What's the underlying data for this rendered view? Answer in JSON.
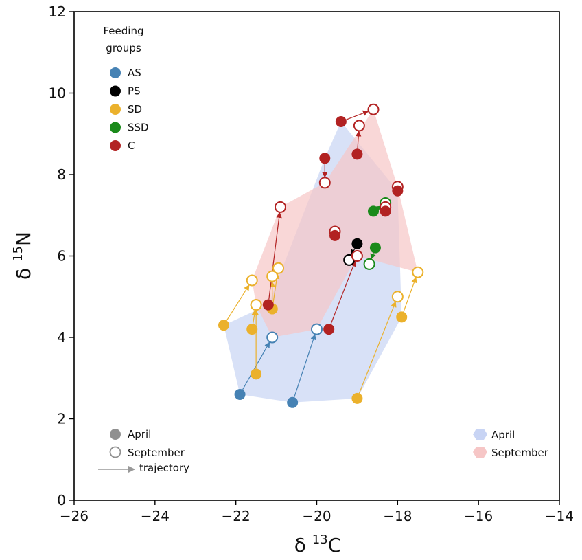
{
  "chart_data": {
    "type": "scatter",
    "xlabel": {
      "prefix": "δ ",
      "sup": "13",
      "suffix": "C"
    },
    "ylabel": {
      "prefix": "δ ",
      "sup": "15",
      "suffix": "N"
    },
    "xlim": [
      -26,
      -14
    ],
    "ylim": [
      0,
      12
    ],
    "xticks": [
      -26,
      -24,
      -22,
      -20,
      -18,
      -16,
      -14
    ],
    "yticks": [
      0,
      2,
      4,
      6,
      8,
      10,
      12
    ],
    "xtick_labels": [
      "−26",
      "−24",
      "−22",
      "−20",
      "−18",
      "−16",
      "−14"
    ],
    "ytick_labels": [
      "0",
      "2",
      "4",
      "6",
      "8",
      "10",
      "12"
    ],
    "grid": false,
    "legend_groups": {
      "title": [
        "Feeding",
        "groups"
      ],
      "placement": "top-left",
      "items": [
        {
          "label": "AS",
          "color": "#4682b4"
        },
        {
          "label": "PS",
          "color": "#000000"
        },
        {
          "label": "SD",
          "color": "#ebb12c"
        },
        {
          "label": "SSD",
          "color": "#1a8a1a"
        },
        {
          "label": "C",
          "color": "#b22222"
        }
      ]
    },
    "legend_markers": {
      "placement": "bottom-left",
      "filled_label": "April",
      "open_label": "September",
      "arrow_label": "trajectory"
    },
    "legend_hulls": {
      "placement": "bottom-right",
      "items": [
        {
          "label": "April",
          "color": "#c8d4f4"
        },
        {
          "label": "September",
          "color": "#f6c6c6"
        }
      ]
    },
    "hulls": [
      {
        "name": "April",
        "color": "#c8d4f4",
        "points": [
          [
            -21.9,
            2.6
          ],
          [
            -20.6,
            2.4
          ],
          [
            -19.0,
            2.5
          ],
          [
            -17.9,
            4.5
          ],
          [
            -18.0,
            7.6
          ],
          [
            -19.4,
            9.3
          ],
          [
            -19.8,
            8.4
          ],
          [
            -21.2,
            4.8
          ],
          [
            -22.3,
            4.3
          ]
        ]
      },
      {
        "name": "September",
        "color": "#f6c6c6",
        "points": [
          [
            -21.6,
            5.4
          ],
          [
            -21.5,
            4.8
          ],
          [
            -21.1,
            4.0
          ],
          [
            -20.0,
            4.2
          ],
          [
            -19.0,
            6.0
          ],
          [
            -17.5,
            5.6
          ],
          [
            -18.0,
            7.7
          ],
          [
            -18.6,
            9.6
          ],
          [
            -19.8,
            7.8
          ],
          [
            -20.9,
            7.2
          ]
        ]
      }
    ],
    "trajectories": [
      {
        "group": "AS",
        "april": [
          -21.9,
          2.6
        ],
        "september": [
          -21.1,
          4.0
        ]
      },
      {
        "group": "AS",
        "april": [
          -20.6,
          2.4
        ],
        "september": [
          -20.0,
          4.2
        ]
      },
      {
        "group": "PS",
        "april": [
          -19.0,
          6.3
        ],
        "september": [
          -19.2,
          5.9
        ]
      },
      {
        "group": "SD",
        "april": [
          -22.3,
          4.3
        ],
        "september": [
          -21.6,
          5.4
        ]
      },
      {
        "group": "SD",
        "april": [
          -21.6,
          4.2
        ],
        "september": [
          -21.5,
          4.8
        ]
      },
      {
        "group": "SD",
        "april": [
          -21.5,
          3.1
        ],
        "september": [
          -21.5,
          4.8
        ]
      },
      {
        "group": "SD",
        "april": [
          -21.1,
          4.7
        ],
        "september": [
          -21.1,
          5.5
        ]
      },
      {
        "group": "SD",
        "april": [
          -21.1,
          4.7
        ],
        "september": [
          -20.95,
          5.7
        ]
      },
      {
        "group": "SD",
        "april": [
          -19.0,
          2.5
        ],
        "september": [
          -18.0,
          5.0
        ]
      },
      {
        "group": "SD",
        "april": [
          -17.9,
          4.5
        ],
        "september": [
          -17.5,
          5.6
        ]
      },
      {
        "group": "SSD",
        "april": [
          -18.55,
          6.2
        ],
        "september": [
          -18.7,
          5.8
        ]
      },
      {
        "group": "SSD",
        "april": [
          -18.6,
          7.1
        ],
        "september": [
          -18.3,
          7.3
        ]
      },
      {
        "group": "C",
        "april": [
          -21.2,
          4.8
        ],
        "september": [
          -20.9,
          7.2
        ]
      },
      {
        "group": "C",
        "april": [
          -19.7,
          4.2
        ],
        "september": [
          -19.0,
          6.0
        ]
      },
      {
        "group": "C",
        "april": [
          -19.55,
          6.5
        ],
        "september": [
          -19.55,
          6.6
        ]
      },
      {
        "group": "C",
        "april": [
          -19.8,
          8.4
        ],
        "september": [
          -19.8,
          7.8
        ]
      },
      {
        "group": "C",
        "april": [
          -19.4,
          9.3
        ],
        "september": [
          -18.6,
          9.6
        ]
      },
      {
        "group": "C",
        "april": [
          -19.0,
          8.5
        ],
        "september": [
          -18.95,
          9.2
        ]
      },
      {
        "group": "C",
        "april": [
          -18.3,
          7.1
        ],
        "september": [
          -18.3,
          7.2
        ]
      },
      {
        "group": "C",
        "april": [
          -18.0,
          7.6
        ],
        "september": [
          -18.0,
          7.7
        ]
      }
    ]
  }
}
